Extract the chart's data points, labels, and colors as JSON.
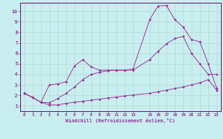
{
  "xlabel": "Windchill (Refroidissement éolien,°C)",
  "background_color": "#c8eef0",
  "grid_color": "#b0d8d0",
  "line_color": "#993399",
  "spine_color": "#660066",
  "xlim": [
    -0.5,
    23.5
  ],
  "ylim": [
    0.5,
    10.8
  ],
  "xticks": [
    0,
    1,
    2,
    3,
    4,
    5,
    6,
    7,
    8,
    9,
    10,
    11,
    12,
    13,
    15,
    16,
    17,
    18,
    19,
    20,
    21,
    22,
    23
  ],
  "yticks": [
    1,
    2,
    3,
    4,
    5,
    6,
    7,
    8,
    9,
    10
  ],
  "line1_x": [
    0,
    1,
    2,
    3,
    4,
    5,
    6,
    7,
    8,
    9,
    10,
    11,
    12,
    13,
    15,
    16,
    17,
    18,
    19,
    20,
    21,
    22,
    23
  ],
  "line1_y": [
    2.2,
    1.8,
    1.35,
    1.1,
    1.1,
    1.25,
    1.35,
    1.45,
    1.55,
    1.65,
    1.75,
    1.85,
    1.95,
    2.05,
    2.2,
    2.35,
    2.5,
    2.65,
    2.8,
    3.0,
    3.2,
    3.5,
    2.5
  ],
  "line2_x": [
    0,
    1,
    2,
    3,
    4,
    5,
    6,
    7,
    8,
    9,
    10,
    11,
    12,
    13,
    15,
    16,
    17,
    18,
    19,
    20,
    21,
    22,
    23
  ],
  "line2_y": [
    2.2,
    1.8,
    1.35,
    1.3,
    1.7,
    2.2,
    2.8,
    3.5,
    4.0,
    4.2,
    4.35,
    4.4,
    4.4,
    4.4,
    5.4,
    6.2,
    6.9,
    7.4,
    7.6,
    6.0,
    5.0,
    4.0,
    4.0
  ],
  "line3_x": [
    0,
    1,
    2,
    3,
    4,
    5,
    6,
    7,
    8,
    9,
    10,
    11,
    12,
    13,
    15,
    16,
    17,
    18,
    19,
    20,
    21,
    22,
    23
  ],
  "line3_y": [
    2.2,
    1.8,
    1.35,
    3.0,
    3.1,
    3.3,
    4.8,
    5.4,
    4.7,
    4.4,
    4.4,
    4.4,
    4.4,
    4.5,
    9.2,
    10.5,
    10.55,
    9.2,
    8.5,
    7.3,
    7.1,
    5.0,
    2.7
  ]
}
